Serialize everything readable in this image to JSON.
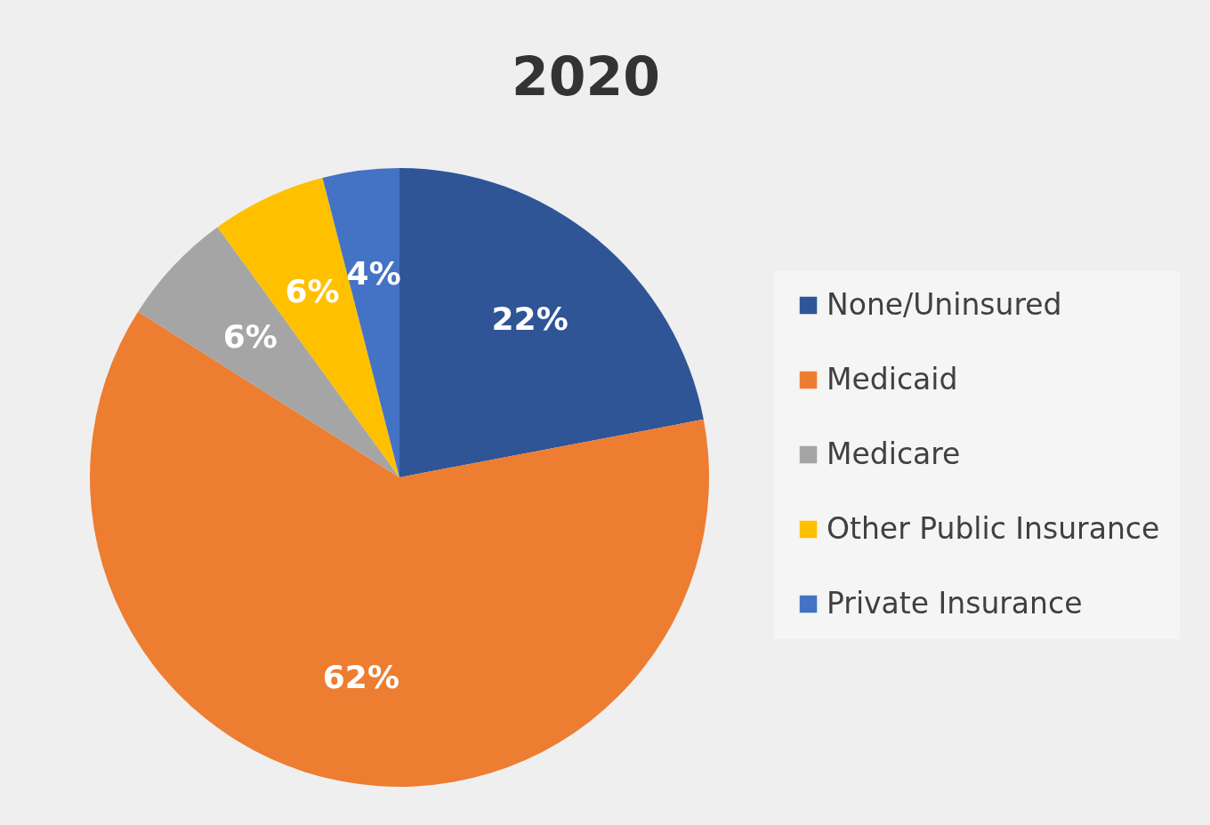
{
  "chart_data": {
    "type": "pie",
    "title": "2020",
    "categories": [
      "None/Uninsured",
      "Medicaid",
      "Medicare",
      "Other Public Insurance",
      "Private Insurance"
    ],
    "values": [
      22,
      62,
      6,
      6,
      4
    ],
    "colors": [
      "#2f5597",
      "#ed7d31",
      "#a5a5a5",
      "#ffc000",
      "#4472c4"
    ],
    "value_labels": [
      "22%",
      "62%",
      "6%",
      "6%",
      "4%"
    ],
    "legend": "right"
  }
}
